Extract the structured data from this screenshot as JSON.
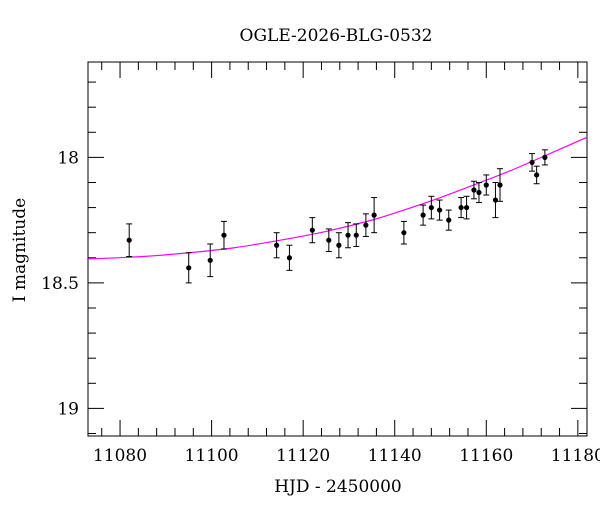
{
  "chart_data": {
    "type": "scatter",
    "title": "OGLE-2026-BLG-0532",
    "xlabel": "HJD - 2450000",
    "ylabel": "I magnitude",
    "xlim": [
      11073,
      11182
    ],
    "ylim": [
      19.11,
      17.62
    ],
    "y_inverted": true,
    "grid": false,
    "legend": "none",
    "x_ticks": [
      11080,
      11100,
      11120,
      11140,
      11160,
      11180
    ],
    "y_ticks": [
      18,
      18.5,
      19
    ],
    "y_tick_labels": [
      "18",
      "18.5",
      "19"
    ],
    "x_minor_step": 4,
    "y_minor_step": 0.1,
    "points_color": "#000000",
    "fit_color": "#ff00ff",
    "points": [
      {
        "x": 11082.0,
        "y": 18.33,
        "err": 0.065
      },
      {
        "x": 11095.0,
        "y": 18.44,
        "err": 0.06
      },
      {
        "x": 11099.7,
        "y": 18.41,
        "err": 0.065
      },
      {
        "x": 11102.7,
        "y": 18.31,
        "err": 0.055
      },
      {
        "x": 11114.2,
        "y": 18.35,
        "err": 0.05
      },
      {
        "x": 11117.0,
        "y": 18.4,
        "err": 0.05
      },
      {
        "x": 11122.0,
        "y": 18.29,
        "err": 0.05
      },
      {
        "x": 11125.6,
        "y": 18.33,
        "err": 0.045
      },
      {
        "x": 11127.8,
        "y": 18.35,
        "err": 0.05
      },
      {
        "x": 11129.8,
        "y": 18.31,
        "err": 0.05
      },
      {
        "x": 11131.6,
        "y": 18.31,
        "err": 0.045
      },
      {
        "x": 11133.7,
        "y": 18.27,
        "err": 0.045
      },
      {
        "x": 11135.5,
        "y": 18.23,
        "err": 0.07
      },
      {
        "x": 11142.0,
        "y": 18.3,
        "err": 0.045
      },
      {
        "x": 11146.2,
        "y": 18.23,
        "err": 0.04
      },
      {
        "x": 11148.0,
        "y": 18.2,
        "err": 0.045
      },
      {
        "x": 11149.8,
        "y": 18.21,
        "err": 0.04
      },
      {
        "x": 11151.8,
        "y": 18.25,
        "err": 0.04
      },
      {
        "x": 11154.5,
        "y": 18.2,
        "err": 0.04
      },
      {
        "x": 11155.7,
        "y": 18.2,
        "err": 0.045
      },
      {
        "x": 11157.3,
        "y": 18.13,
        "err": 0.035
      },
      {
        "x": 11158.4,
        "y": 18.14,
        "err": 0.04
      },
      {
        "x": 11160.0,
        "y": 18.11,
        "err": 0.04
      },
      {
        "x": 11162.0,
        "y": 18.17,
        "err": 0.07
      },
      {
        "x": 11163.0,
        "y": 18.11,
        "err": 0.065
      },
      {
        "x": 11170.0,
        "y": 18.02,
        "err": 0.035
      },
      {
        "x": 11171.0,
        "y": 18.07,
        "err": 0.035
      },
      {
        "x": 11172.8,
        "y": 18.0,
        "err": 0.03
      }
    ],
    "fit_curve": {
      "x": [
        11073,
        11085,
        11095,
        11105,
        11115,
        11125,
        11135,
        11142,
        11150,
        11158,
        11165,
        11172,
        11182
      ],
      "y": [
        18.405,
        18.395,
        18.38,
        18.36,
        18.33,
        18.295,
        18.25,
        18.21,
        18.16,
        18.105,
        18.055,
        18.0,
        17.92
      ]
    }
  }
}
